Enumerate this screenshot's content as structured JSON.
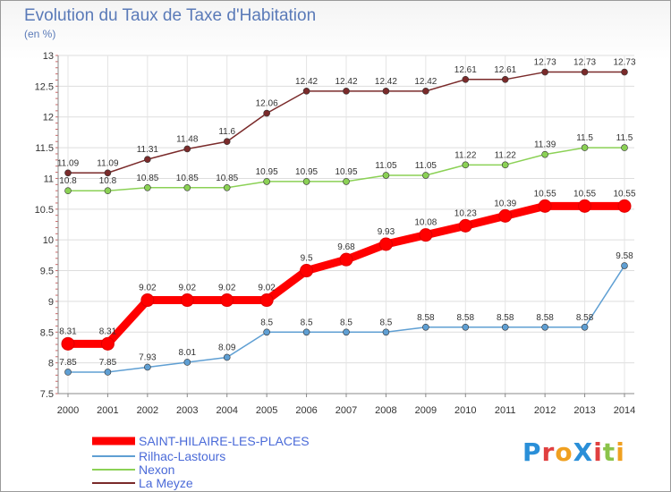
{
  "title": "Evolution du Taux de Taxe d'Habitation",
  "subtitle": "(en %)",
  "logo": "ProXiti",
  "colors": {
    "title": "#5a7ab8",
    "saint": "#ff0000",
    "rilhac": "#5f9fd3",
    "nexon": "#8bd155",
    "meyze": "#7a2a2a"
  },
  "chart_data": {
    "type": "line",
    "x": [
      2000,
      2001,
      2002,
      2003,
      2004,
      2005,
      2006,
      2007,
      2008,
      2009,
      2010,
      2011,
      2012,
      2013,
      2014
    ],
    "ylim": [
      7.5,
      13
    ],
    "yticks": [
      "7.5",
      "8",
      "8.5",
      "9",
      "9.5",
      "10",
      "10.5",
      "11",
      "11.5",
      "12",
      "12.5",
      "13"
    ],
    "grid": true,
    "legend_position": "bottom-left",
    "series": [
      {
        "name": "SAINT-HILAIRE-LES-PLACES",
        "values": [
          8.31,
          8.31,
          9.02,
          9.02,
          9.02,
          9.02,
          9.5,
          9.68,
          9.93,
          10.08,
          10.23,
          10.39,
          10.55,
          10.55,
          10.55
        ],
        "labels": [
          "8.31",
          "8.31",
          "9.02",
          "9.02",
          "9.02",
          "9.02",
          "9.5",
          "9.68",
          "9.93",
          "10.08",
          "10.23",
          "10.39",
          "10.55",
          "10.55",
          "10.55"
        ]
      },
      {
        "name": "Rilhac-Lastours",
        "values": [
          7.85,
          7.85,
          7.93,
          8.01,
          8.09,
          8.5,
          8.5,
          8.5,
          8.5,
          8.58,
          8.58,
          8.58,
          8.58,
          8.58,
          9.58
        ],
        "labels": [
          "7.85",
          "7.85",
          "7.93",
          "8.01",
          "8.09",
          "8.5",
          "8.5",
          "8.5",
          "8.5",
          "8.58",
          "8.58",
          "8.58",
          "8.58",
          "8.58",
          "9.58"
        ]
      },
      {
        "name": "Nexon",
        "values": [
          10.8,
          10.8,
          10.85,
          10.85,
          10.85,
          10.95,
          10.95,
          10.95,
          11.05,
          11.05,
          11.22,
          11.22,
          11.39,
          11.5,
          11.5
        ],
        "labels": [
          "10.8",
          "10.8",
          "10.85",
          "10.85",
          "10.85",
          "10.95",
          "10.95",
          "10.95",
          "11.05",
          "11.05",
          "11.22",
          "11.22",
          "11.39",
          "11.5",
          "11.5"
        ]
      },
      {
        "name": "La Meyze",
        "values": [
          11.09,
          11.09,
          11.31,
          11.48,
          11.6,
          12.06,
          12.42,
          12.42,
          12.42,
          12.42,
          12.61,
          12.61,
          12.73,
          12.73,
          12.73
        ],
        "labels": [
          "11.09",
          "11.09",
          "11.31",
          "11.48",
          "11.6",
          "12.06",
          "12.42",
          "12.42",
          "12.42",
          "12.42",
          "12.61",
          "12.61",
          "12.73",
          "12.73",
          "12.73"
        ]
      }
    ]
  }
}
